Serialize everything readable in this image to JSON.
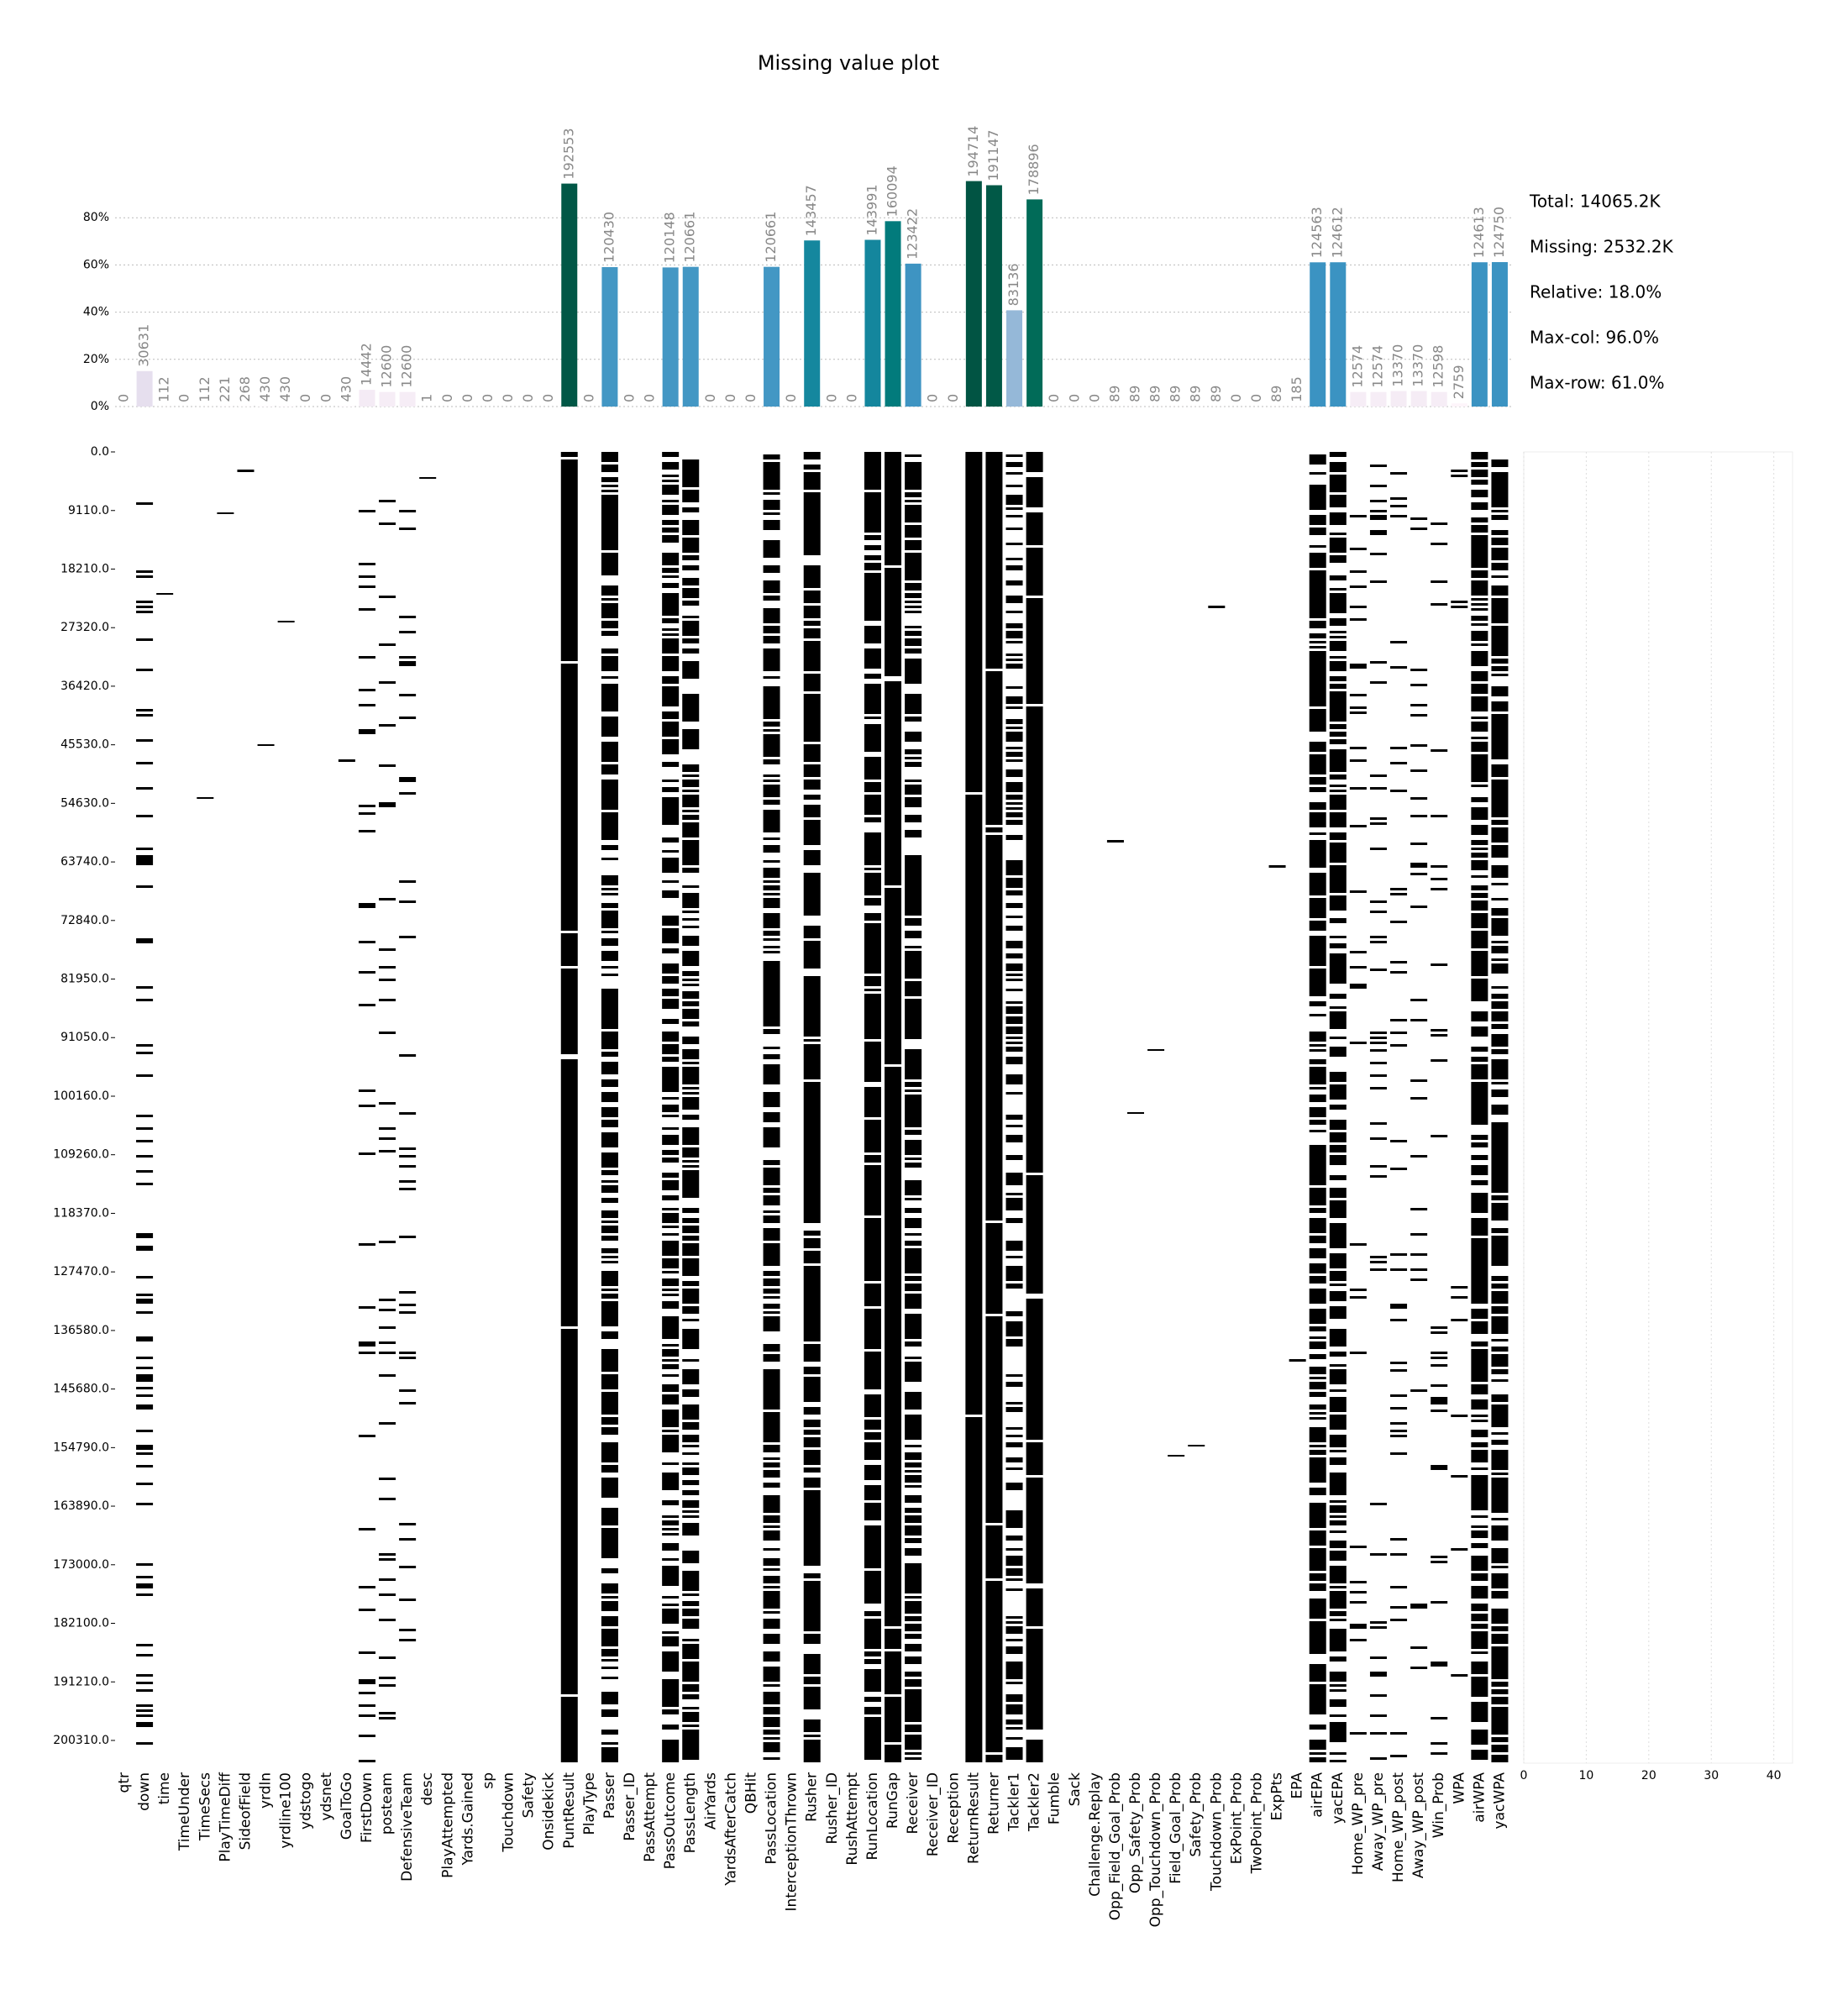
{
  "chart_data": [
    {
      "type": "bar",
      "title": "Missing value plot",
      "categories": [
        "qtr",
        "down",
        "time",
        "TimeUnder",
        "TimeSecs",
        "PlayTimeDiff",
        "SideofField",
        "yrdln",
        "yrdline100",
        "ydstogo",
        "ydsnet",
        "GoalToGo",
        "FirstDown",
        "posteam",
        "DefensiveTeam",
        "desc",
        "PlayAttempted",
        "Yards.Gained",
        "sp",
        "Touchdown",
        "Safety",
        "Onsidekick",
        "PuntResult",
        "PlayType",
        "Passer",
        "Passer_ID",
        "PassAttempt",
        "PassOutcome",
        "PassLength",
        "AirYards",
        "YardsAfterCatch",
        "QBHit",
        "PassLocation",
        "InterceptionThrown",
        "Rusher",
        "Rusher_ID",
        "RushAttempt",
        "RunLocation",
        "RunGap",
        "Receiver",
        "Receiver_ID",
        "Reception",
        "ReturnResult",
        "Returner",
        "Tackler1",
        "Tackler2",
        "Fumble",
        "Sack",
        "Challenge.Replay",
        "Opp_Field_Goal_Prob",
        "Opp_Safety_Prob",
        "Opp_Touchdown_Prob",
        "Field_Goal_Prob",
        "Safety_Prob",
        "Touchdown_Prob",
        "ExPoint_Prob",
        "TwoPoint_Prob",
        "ExpPts",
        "EPA",
        "airEPA",
        "yacEPA",
        "Home_WP_pre",
        "Away_WP_pre",
        "Home_WP_post",
        "Away_WP_post",
        "Win_Prob",
        "WPA",
        "airWPA",
        "yacWPA"
      ],
      "values": [
        0,
        30631,
        112,
        0,
        112,
        221,
        268,
        430,
        430,
        0,
        0,
        430,
        14442,
        12600,
        12600,
        1,
        0,
        0,
        0,
        0,
        0,
        0,
        192553,
        0,
        120430,
        0,
        0,
        120148,
        120661,
        0,
        0,
        0,
        120661,
        0,
        143457,
        0,
        0,
        143991,
        160094,
        123422,
        0,
        0,
        194714,
        191147,
        83136,
        178896,
        0,
        0,
        0,
        89,
        89,
        89,
        89,
        89,
        89,
        0,
        0,
        89,
        185,
        124563,
        124612,
        12574,
        12574,
        13370,
        13370,
        12598,
        2759,
        124613,
        124750
      ],
      "ylim": [
        0,
        203844
      ],
      "yticks": [
        {
          "value": 0,
          "label": "0%"
        },
        {
          "value": 40769,
          "label": "20%"
        },
        {
          "value": 81538,
          "label": "40%"
        },
        {
          "value": 122306,
          "label": "60%"
        },
        {
          "value": 163075,
          "label": "80%"
        }
      ],
      "grid": true,
      "colormap": [
        "#fff7fb",
        "#ece2f0",
        "#d0d1e6",
        "#a6bddb",
        "#67a9cf",
        "#3690c0",
        "#02818a",
        "#016c59",
        "#014636"
      ],
      "annotations": [
        "Total: 14065.2K",
        "Missing: 2532.2K",
        "Relative: 18.0%",
        "Max-col: 96.0%",
        "Max-row: 61.0%"
      ]
    },
    {
      "type": "matrix",
      "ylim": [
        0,
        203844
      ],
      "yticks": [
        {
          "value": 0,
          "label": "0.0"
        },
        {
          "value": 9110,
          "label": "9110.0"
        },
        {
          "value": 18210,
          "label": "18210.0"
        },
        {
          "value": 27320,
          "label": "27320.0"
        },
        {
          "value": 36420,
          "label": "36420.0"
        },
        {
          "value": 45530,
          "label": "45530.0"
        },
        {
          "value": 54630,
          "label": "54630.0"
        },
        {
          "value": 63740,
          "label": "63740.0"
        },
        {
          "value": 72840,
          "label": "72840.0"
        },
        {
          "value": 81950,
          "label": "81950.0"
        },
        {
          "value": 91050,
          "label": "91050.0"
        },
        {
          "value": 100160,
          "label": "100160.0"
        },
        {
          "value": 109260,
          "label": "109260.0"
        },
        {
          "value": 118370,
          "label": "118370.0"
        },
        {
          "value": 127470,
          "label": "127470.0"
        },
        {
          "value": 136580,
          "label": "136580.0"
        },
        {
          "value": 145680,
          "label": "145680.0"
        },
        {
          "value": 154790,
          "label": "154790.0"
        },
        {
          "value": 163890,
          "label": "163890.0"
        },
        {
          "value": 173000,
          "label": "173000.0"
        },
        {
          "value": 182100,
          "label": "182100.0"
        },
        {
          "value": 191210,
          "label": "191210.0"
        },
        {
          "value": 200310,
          "label": "200310.0"
        }
      ]
    },
    {
      "type": "row-counts",
      "xlim": [
        0,
        43
      ],
      "xticks": [
        0,
        10,
        20,
        30,
        40
      ]
    }
  ]
}
